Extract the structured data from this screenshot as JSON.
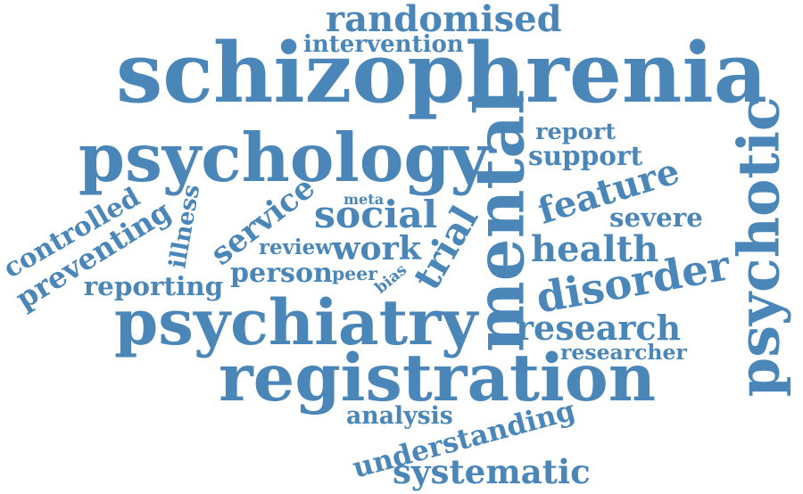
{
  "color": "#4a86b8",
  "words": [
    {
      "key": "schizophrenia",
      "text": "schizophrenia"
    },
    {
      "key": "psychology",
      "text": "psychology"
    },
    {
      "key": "randomised",
      "text": "randomised"
    },
    {
      "key": "intervention",
      "text": "intervention"
    },
    {
      "key": "mental",
      "text": "mental"
    },
    {
      "key": "psychotic",
      "text": "psychotic"
    },
    {
      "key": "trial",
      "text": "trial"
    },
    {
      "key": "report",
      "text": "report"
    },
    {
      "key": "support",
      "text": "support"
    },
    {
      "key": "feature",
      "text": "feature"
    },
    {
      "key": "severe",
      "text": "severe"
    },
    {
      "key": "health",
      "text": "health"
    },
    {
      "key": "disorder",
      "text": "disorder"
    },
    {
      "key": "controlled",
      "text": "controlled"
    },
    {
      "key": "preventing",
      "text": "preventing"
    },
    {
      "key": "illness",
      "text": "illness"
    },
    {
      "key": "service",
      "text": "service"
    },
    {
      "key": "meta",
      "text": "meta"
    },
    {
      "key": "social",
      "text": "social"
    },
    {
      "key": "review",
      "text": "review"
    },
    {
      "key": "work",
      "text": "work"
    },
    {
      "key": "reporting",
      "text": "reporting"
    },
    {
      "key": "person",
      "text": "person"
    },
    {
      "key": "peer",
      "text": "peer"
    },
    {
      "key": "bias",
      "text": "bias"
    },
    {
      "key": "psychiatry",
      "text": "psychiatry"
    },
    {
      "key": "research",
      "text": "research"
    },
    {
      "key": "researcher",
      "text": "researcher"
    },
    {
      "key": "registration",
      "text": "registration"
    },
    {
      "key": "analysis",
      "text": "analysis"
    },
    {
      "key": "understanding",
      "text": "understanding"
    },
    {
      "key": "systematic",
      "text": "systematic"
    }
  ]
}
